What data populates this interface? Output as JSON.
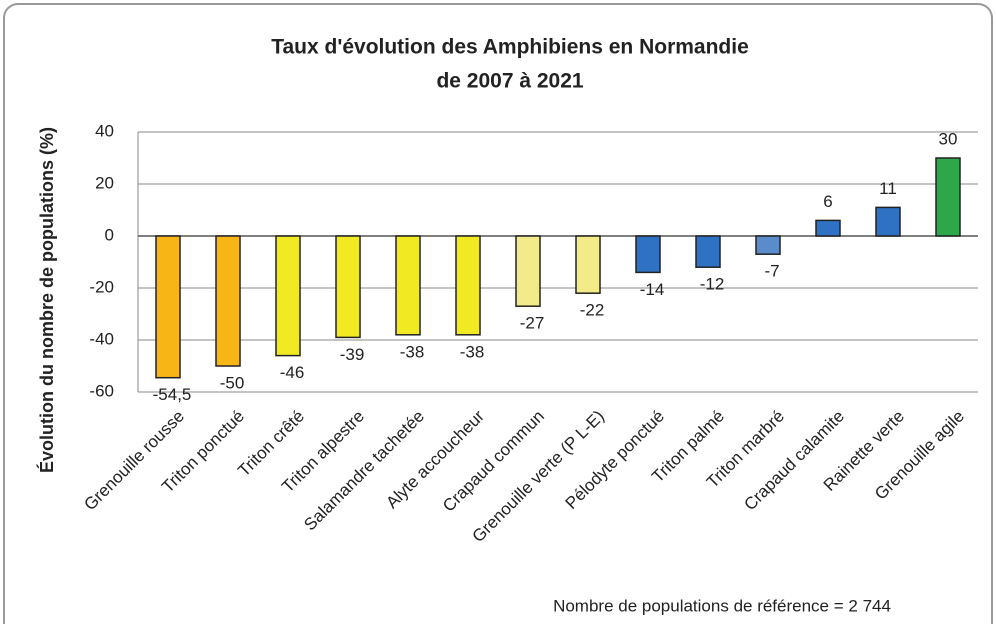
{
  "chart_data": {
    "type": "bar",
    "title": "Taux d'évolution des Amphibiens en Normandie",
    "subtitle": "de 2007 à 2021",
    "y_label": "Évolution du nombre de populations (%)",
    "note": "Nombre de populations de référence = 2 744",
    "categories": [
      "Grenouille rousse",
      "Triton ponctué",
      "Triton crêté",
      "Triton alpestre",
      "Salamandre tachetée",
      "Alyte accoucheur",
      "Crapaud commun",
      "Grenouille verte (P L-E)",
      "Pélodyte ponctué",
      "Triton palmé",
      "Triton marbré",
      "Crapaud calamite",
      "Rainette verte",
      "Grenouille agile"
    ],
    "values": [
      -54.5,
      -50,
      -46,
      -39,
      -38,
      -38,
      -27,
      -22,
      -14,
      -12,
      -7,
      6,
      11,
      30
    ],
    "value_labels": [
      "-54,5",
      "-50",
      "-46",
      "-39",
      "-38",
      "-38",
      "-27",
      "-22",
      "-14",
      "-12",
      "-7",
      "6",
      "11",
      "30"
    ],
    "colors": [
      "#f7b516",
      "#f7b516",
      "#f1ea22",
      "#f1ea22",
      "#f1ea22",
      "#f1ea22",
      "#f3ea8a",
      "#f3ea8a",
      "#2f72c4",
      "#2f72c4",
      "#5a8ccc",
      "#2f72c4",
      "#2f72c4",
      "#2ea64a"
    ],
    "ylim": [
      -60,
      40
    ],
    "yticks": [
      40,
      20,
      0,
      -20,
      -40,
      -60
    ],
    "grid": true
  }
}
